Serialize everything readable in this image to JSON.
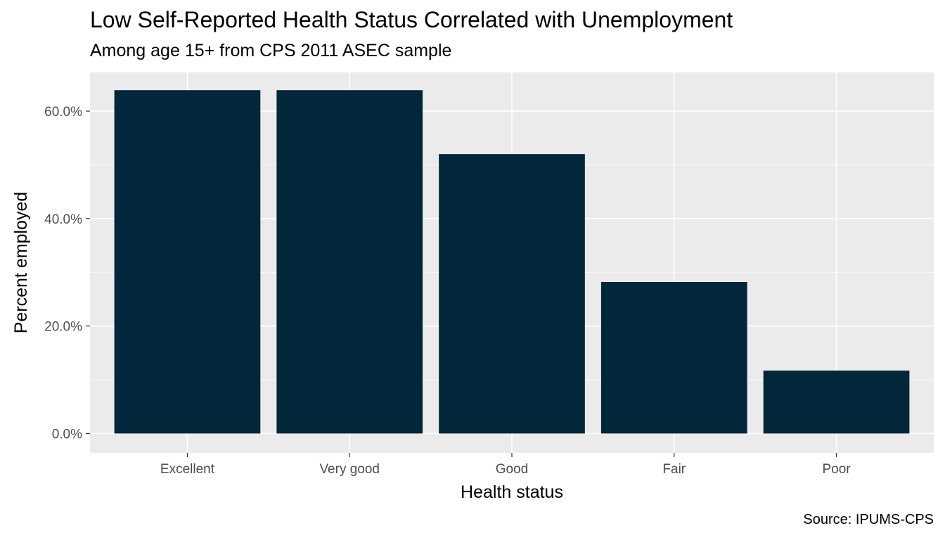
{
  "chart_data": {
    "type": "bar",
    "title": "Low Self-Reported Health Status Correlated with Unemployment",
    "subtitle": "Among age 15+ from CPS 2011 ASEC sample",
    "caption": "Source: IPUMS-CPS",
    "xlabel": "Health status",
    "ylabel": "Percent employed",
    "categories": [
      "Excellent",
      "Very good",
      "Good",
      "Fair",
      "Poor"
    ],
    "values": [
      63.9,
      63.9,
      52.0,
      28.2,
      11.7
    ],
    "ylim": [
      -3.6,
      67.2
    ],
    "yticks": [
      0,
      20,
      40,
      60
    ],
    "ytick_labels": [
      "0.0%",
      "20.0%",
      "40.0%",
      "60.0%"
    ],
    "grid": true,
    "colors": {
      "bar": "#02263A",
      "panel": "#EBEBEB",
      "grid": "#FFFFFF",
      "tick_text": "#4D4D4D"
    }
  }
}
